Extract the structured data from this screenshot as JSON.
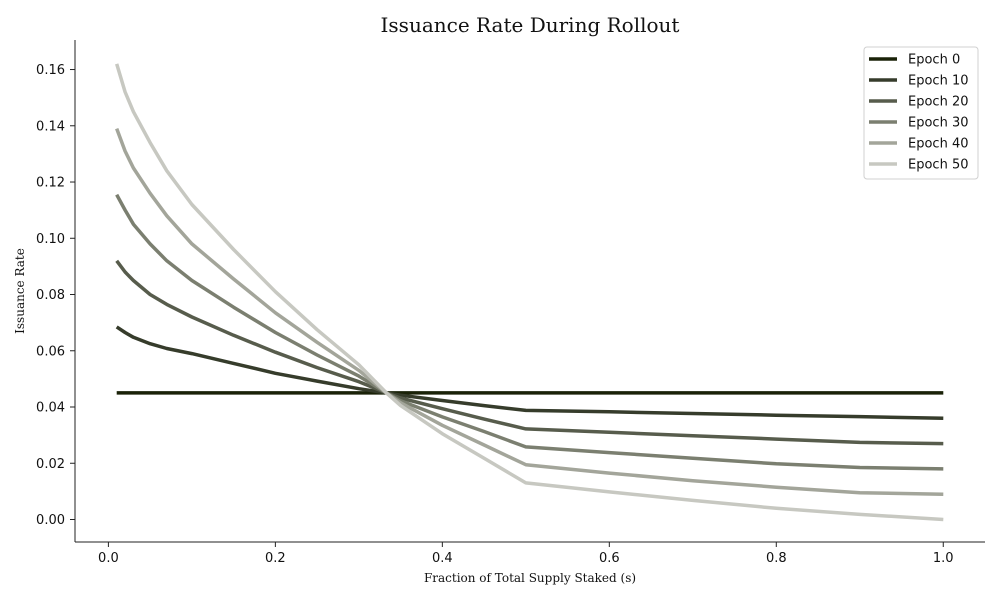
{
  "chart_data": {
    "type": "line",
    "title": "Issuance Rate During Rollout",
    "xlabel": "Fraction of Total Supply Staked (s)",
    "ylabel": "Issuance Rate",
    "xlim": [
      -0.04,
      1.05
    ],
    "ylim": [
      -0.008,
      0.1705
    ],
    "xticks": [
      0.0,
      0.2,
      0.4,
      0.6,
      0.8,
      1.0
    ],
    "xtick_labels": [
      "0.0",
      "0.2",
      "0.4",
      "0.6",
      "0.8",
      "1.0"
    ],
    "yticks": [
      0.0,
      0.02,
      0.04,
      0.06,
      0.08,
      0.1,
      0.12,
      0.14,
      0.16
    ],
    "ytick_labels": [
      "0.00",
      "0.02",
      "0.04",
      "0.06",
      "0.08",
      "0.10",
      "0.12",
      "0.14",
      "0.16"
    ],
    "grid": false,
    "legend_position": "top-right",
    "x": [
      0.01,
      0.02,
      0.03,
      0.05,
      0.07,
      0.1,
      0.15,
      0.2,
      0.25,
      0.3,
      0.333,
      0.35,
      0.4,
      0.45,
      0.5,
      0.6,
      0.7,
      0.8,
      0.9,
      1.0
    ],
    "series": [
      {
        "name": "Epoch 0",
        "color": "#1a2208",
        "values": [
          0.045,
          0.045,
          0.045,
          0.045,
          0.045,
          0.045,
          0.045,
          0.045,
          0.045,
          0.045,
          0.045,
          0.045,
          0.045,
          0.045,
          0.045,
          0.045,
          0.045,
          0.045,
          0.045,
          0.045
        ]
      },
      {
        "name": "Epoch 10",
        "color": "#363c2b",
        "values": [
          0.0685,
          0.0665,
          0.0648,
          0.0625,
          0.0608,
          0.059,
          0.0555,
          0.052,
          0.0492,
          0.0465,
          0.045,
          0.0442,
          0.0423,
          0.0405,
          0.0388,
          0.0383,
          0.0377,
          0.0371,
          0.0366,
          0.036
        ]
      },
      {
        "name": "Epoch 20",
        "color": "#575c4c",
        "values": [
          0.092,
          0.088,
          0.085,
          0.08,
          0.0765,
          0.072,
          0.0655,
          0.0595,
          0.054,
          0.049,
          0.045,
          0.0432,
          0.0394,
          0.0357,
          0.0322,
          0.031,
          0.0298,
          0.0286,
          0.0274,
          0.027
        ]
      },
      {
        "name": "Epoch 30",
        "color": "#7b7f70",
        "values": [
          0.1155,
          0.11,
          0.105,
          0.098,
          0.092,
          0.085,
          0.0755,
          0.0665,
          0.0585,
          0.051,
          0.045,
          0.0422,
          0.0365,
          0.0313,
          0.0258,
          0.0238,
          0.0218,
          0.0198,
          0.0185,
          0.018
        ]
      },
      {
        "name": "Epoch 40",
        "color": "#a3a59a",
        "values": [
          0.139,
          0.131,
          0.125,
          0.116,
          0.108,
          0.098,
          0.0855,
          0.0735,
          0.063,
          0.053,
          0.045,
          0.0415,
          0.0335,
          0.0265,
          0.0195,
          0.0165,
          0.0138,
          0.0115,
          0.0095,
          0.009
        ]
      },
      {
        "name": "Epoch 50",
        "color": "#c7c8c1",
        "values": [
          0.162,
          0.152,
          0.145,
          0.134,
          0.124,
          0.112,
          0.096,
          0.081,
          0.0675,
          0.055,
          0.045,
          0.0405,
          0.0305,
          0.0218,
          0.013,
          0.0098,
          0.0068,
          0.004,
          0.0018,
          0.0
        ]
      }
    ]
  }
}
